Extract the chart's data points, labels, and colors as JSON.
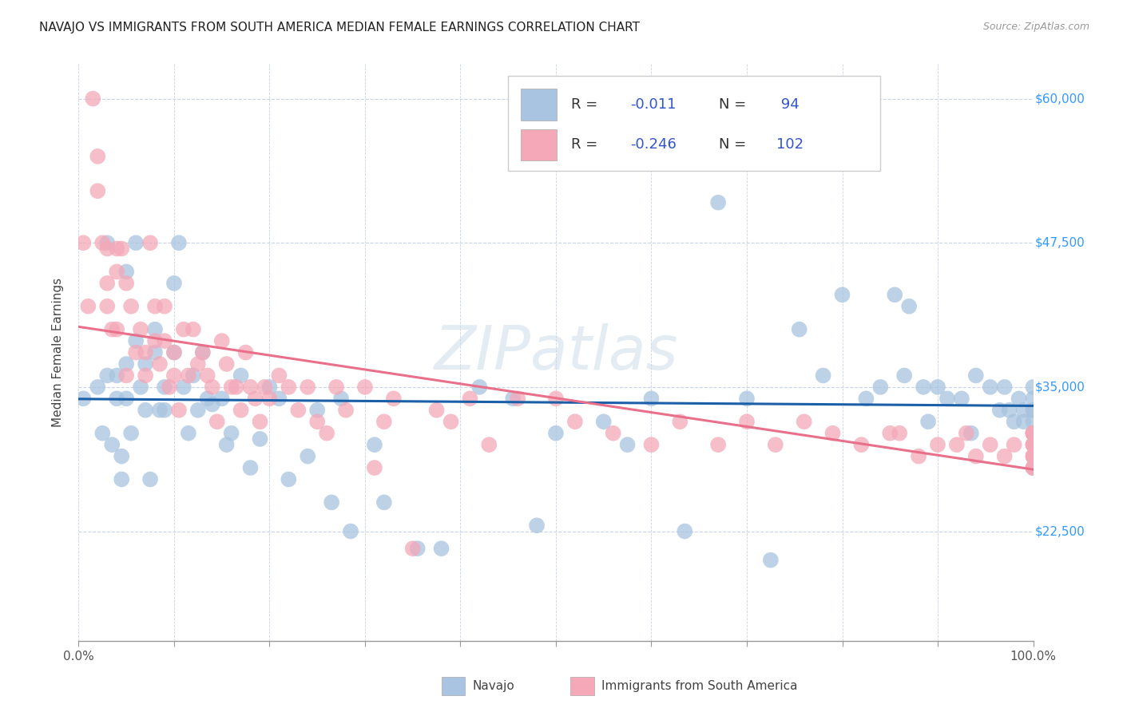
{
  "title": "NAVAJO VS IMMIGRANTS FROM SOUTH AMERICA MEDIAN FEMALE EARNINGS CORRELATION CHART",
  "source_text": "Source: ZipAtlas.com",
  "ylabel": "Median Female Earnings",
  "xlim": [
    0,
    1.0
  ],
  "ylim": [
    13000,
    63000
  ],
  "yticks": [
    22500,
    35000,
    47500,
    60000
  ],
  "ytick_labels": [
    "$22,500",
    "$35,000",
    "$47,500",
    "$60,000"
  ],
  "R_navajo": -0.011,
  "N_navajo": 94,
  "R_south_america": -0.246,
  "N_south_america": 102,
  "navajo_color": "#a8c4e0",
  "south_america_color": "#f4a8b8",
  "navajo_line_color": "#1a5fa8",
  "south_america_line_color": "#e8708a",
  "watermark": "ZIPatlas",
  "background_color": "#ffffff",
  "grid_color": "#c8d4e4",
  "navajo_x": [
    0.005,
    0.02,
    0.025,
    0.03,
    0.03,
    0.035,
    0.04,
    0.04,
    0.045,
    0.045,
    0.05,
    0.05,
    0.05,
    0.055,
    0.06,
    0.06,
    0.065,
    0.07,
    0.07,
    0.075,
    0.08,
    0.08,
    0.085,
    0.09,
    0.09,
    0.1,
    0.1,
    0.105,
    0.11,
    0.115,
    0.12,
    0.125,
    0.13,
    0.135,
    0.14,
    0.15,
    0.155,
    0.16,
    0.17,
    0.18,
    0.19,
    0.2,
    0.21,
    0.22,
    0.24,
    0.25,
    0.265,
    0.275,
    0.285,
    0.31,
    0.32,
    0.355,
    0.38,
    0.42,
    0.455,
    0.48,
    0.5,
    0.55,
    0.575,
    0.6,
    0.635,
    0.67,
    0.7,
    0.725,
    0.755,
    0.78,
    0.8,
    0.825,
    0.84,
    0.855,
    0.865,
    0.87,
    0.885,
    0.89,
    0.9,
    0.91,
    0.925,
    0.935,
    0.94,
    0.955,
    0.965,
    0.97,
    0.975,
    0.98,
    0.985,
    0.99,
    0.99,
    1.0,
    1.0,
    1.0,
    1.0,
    1.0,
    1.0,
    1.0
  ],
  "navajo_y": [
    34000,
    35000,
    31000,
    47500,
    36000,
    30000,
    36000,
    34000,
    29000,
    27000,
    45000,
    37000,
    34000,
    31000,
    47500,
    39000,
    35000,
    37000,
    33000,
    27000,
    40000,
    38000,
    33000,
    35000,
    33000,
    44000,
    38000,
    47500,
    35000,
    31000,
    36000,
    33000,
    38000,
    34000,
    33500,
    34000,
    30000,
    31000,
    36000,
    28000,
    30500,
    35000,
    34000,
    27000,
    29000,
    33000,
    25000,
    34000,
    22500,
    30000,
    25000,
    21000,
    21000,
    35000,
    34000,
    23000,
    31000,
    32000,
    30000,
    34000,
    22500,
    51000,
    34000,
    20000,
    40000,
    36000,
    43000,
    34000,
    35000,
    43000,
    36000,
    42000,
    35000,
    32000,
    35000,
    34000,
    34000,
    31000,
    36000,
    35000,
    33000,
    35000,
    33000,
    32000,
    34000,
    32000,
    33000,
    31000,
    32000,
    34000,
    33000,
    35000,
    33000,
    31000
  ],
  "south_america_x": [
    0.005,
    0.01,
    0.015,
    0.02,
    0.02,
    0.025,
    0.03,
    0.03,
    0.03,
    0.035,
    0.04,
    0.04,
    0.04,
    0.045,
    0.05,
    0.05,
    0.055,
    0.06,
    0.065,
    0.07,
    0.07,
    0.075,
    0.08,
    0.08,
    0.085,
    0.09,
    0.09,
    0.095,
    0.1,
    0.1,
    0.105,
    0.11,
    0.115,
    0.12,
    0.125,
    0.13,
    0.135,
    0.14,
    0.145,
    0.15,
    0.155,
    0.16,
    0.165,
    0.17,
    0.175,
    0.18,
    0.185,
    0.19,
    0.195,
    0.2,
    0.21,
    0.22,
    0.23,
    0.24,
    0.25,
    0.26,
    0.27,
    0.28,
    0.3,
    0.31,
    0.32,
    0.33,
    0.35,
    0.375,
    0.39,
    0.41,
    0.43,
    0.46,
    0.5,
    0.52,
    0.56,
    0.6,
    0.63,
    0.67,
    0.7,
    0.73,
    0.76,
    0.79,
    0.82,
    0.85,
    0.86,
    0.88,
    0.9,
    0.92,
    0.93,
    0.94,
    0.955,
    0.97,
    0.98,
    1.0,
    1.0,
    1.0,
    1.0,
    1.0,
    1.0,
    1.0,
    1.0,
    1.0,
    1.0,
    1.0,
    1.0,
    1.0
  ],
  "south_america_y": [
    47500,
    42000,
    60000,
    55000,
    52000,
    47500,
    47000,
    44000,
    42000,
    40000,
    47000,
    45000,
    40000,
    47000,
    44000,
    36000,
    42000,
    38000,
    40000,
    38000,
    36000,
    47500,
    42000,
    39000,
    37000,
    42000,
    39000,
    35000,
    38000,
    36000,
    33000,
    40000,
    36000,
    40000,
    37000,
    38000,
    36000,
    35000,
    32000,
    39000,
    37000,
    35000,
    35000,
    33000,
    38000,
    35000,
    34000,
    32000,
    35000,
    34000,
    36000,
    35000,
    33000,
    35000,
    32000,
    31000,
    35000,
    33000,
    35000,
    28000,
    32000,
    34000,
    21000,
    33000,
    32000,
    34000,
    30000,
    34000,
    34000,
    32000,
    31000,
    30000,
    32000,
    30000,
    32000,
    30000,
    32000,
    31000,
    30000,
    31000,
    31000,
    29000,
    30000,
    30000,
    31000,
    29000,
    30000,
    29000,
    30000,
    30000,
    28000,
    31000,
    29000,
    31000,
    29000,
    28000,
    31000,
    30000,
    29000,
    31000,
    30000,
    28000
  ]
}
